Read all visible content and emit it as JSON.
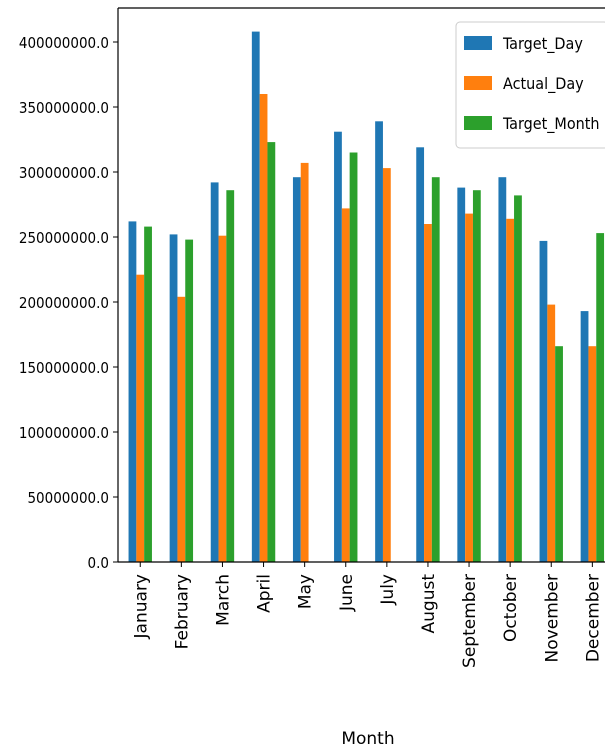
{
  "chart_data": {
    "type": "bar",
    "categories": [
      "January",
      "February",
      "March",
      "April",
      "May",
      "June",
      "July",
      "August",
      "September",
      "October",
      "November",
      "December"
    ],
    "series": [
      {
        "name": "Target_Day",
        "color": "#1f77b4",
        "values": [
          262000000,
          252000000,
          292000000,
          408000000,
          296000000,
          331000000,
          339000000,
          319000000,
          288000000,
          296000000,
          247000000,
          193000000
        ]
      },
      {
        "name": "Actual_Day",
        "color": "#ff7f0e",
        "values": [
          221000000,
          204000000,
          251000000,
          360000000,
          307000000,
          272000000,
          303000000,
          260000000,
          268000000,
          264000000,
          198000000,
          166000000
        ]
      },
      {
        "name": "Target_Month",
        "color": "#2ca02c",
        "values": [
          258000000,
          248000000,
          286000000,
          323000000,
          null,
          315000000,
          null,
          296000000,
          286000000,
          282000000,
          166000000,
          253000000
        ]
      }
    ],
    "y_ticks": [
      "0.0",
      "50000000.0",
      "100000000.0",
      "150000000.0",
      "200000000.0",
      "250000000.0",
      "300000000.0",
      "350000000.0",
      "400000000.0"
    ],
    "xlabel": "Month",
    "ylabel": "",
    "ylim": [
      0,
      425000000
    ],
    "grid": false,
    "legend_position": "top-right"
  }
}
